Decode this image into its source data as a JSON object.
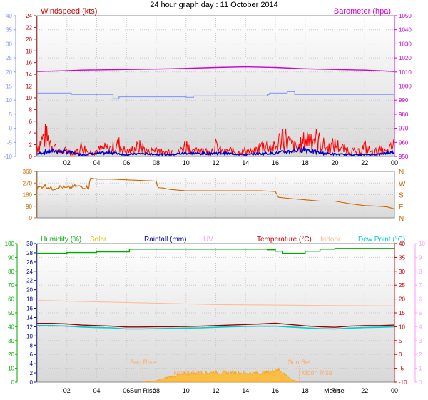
{
  "title": "24 hour graph day : 11 October 2014",
  "x_ticks": [
    "02",
    "04",
    "06",
    "08",
    "10",
    "12",
    "14",
    "16",
    "18",
    "20",
    "22",
    "00"
  ],
  "colors": {
    "windspeed": "#ff0000",
    "wind_avg": "#0000cc",
    "barometer": "#cc00cc",
    "temp_axis": "#cc0000",
    "baro_axis": "#cc00cc",
    "wind_blue_axis": "#8899ff",
    "direction": "#cc6600",
    "humidity": "#00aa00",
    "solar": "#cccc00",
    "rainfall": "#000099",
    "uv": "#ff99ff",
    "temperature": "#990000",
    "indoor": "#ffbb99",
    "dewpoint": "#00cccc",
    "solar_fill": "#ffbb33",
    "sun_moon": "#ffaa66"
  },
  "chart_data": [
    {
      "type": "line",
      "name": "wind-barometer",
      "labels": {
        "left": "Windspeed (kts)",
        "right": "Barometer (hpa)"
      },
      "y_left_outer": {
        "ticks": [
          "40",
          "35",
          "30",
          "25",
          "20",
          "15",
          "10",
          "5",
          "0",
          "-5",
          "-10"
        ],
        "ylim": [
          -10,
          40
        ]
      },
      "y_left_inner": {
        "ticks": [
          "24",
          "22",
          "20",
          "18",
          "16",
          "14",
          "12",
          "10",
          "8",
          "6",
          "4",
          "2",
          "0"
        ],
        "ylim": [
          0,
          25
        ]
      },
      "y_right": {
        "ticks": [
          "1050",
          "1040",
          "1030",
          "1020",
          "1010",
          "1000",
          "990",
          "980",
          "970",
          "960",
          "950"
        ],
        "ylim": [
          947,
          1053
        ]
      },
      "series": [
        {
          "role": "barometer",
          "unit": "hPa",
          "x": [
            0,
            2,
            3,
            6,
            9,
            12,
            14,
            16,
            18,
            20,
            22,
            24
          ],
          "values": [
            1011.0,
            1011.5,
            1012.0,
            1012.5,
            1013.0,
            1014.0,
            1014.5,
            1014.0,
            1013.0,
            1012.5,
            1012.0,
            1011.0
          ]
        },
        {
          "role": "wind-blue-line",
          "unit": "outer scale",
          "x": [
            0,
            2.2,
            2.3,
            5,
            5.1,
            5.4,
            5.5,
            6,
            10,
            10.4,
            10.5,
            14,
            15.5,
            15.6,
            16.7,
            16.8,
            17.2,
            17.3,
            22,
            24
          ],
          "values": [
            12.5,
            12.5,
            12.0,
            12.0,
            10.5,
            10.5,
            11.2,
            11.2,
            11.0,
            11.0,
            11.5,
            11.5,
            12.0,
            12.5,
            12.5,
            13.0,
            13.0,
            12.0,
            12.0,
            12.0
          ]
        },
        {
          "role": "windspeed-gust",
          "unit": "kts",
          "x": [
            0,
            0.5,
            1,
            1.5,
            2,
            2.5,
            3,
            3.5,
            4,
            4.5,
            5,
            5.5,
            6,
            6.5,
            7,
            7.5,
            8,
            8.5,
            9,
            9.5,
            10,
            10.5,
            11,
            11.5,
            12,
            12.5,
            13,
            13.5,
            14,
            14.5,
            15,
            15.5,
            16,
            16.5,
            17,
            17.5,
            18,
            18.5,
            19,
            19.5,
            20,
            20.5,
            21,
            21.5,
            22,
            22.5,
            23,
            23.5,
            24
          ],
          "values": [
            2.5,
            5.0,
            3.5,
            1.0,
            1.5,
            0.8,
            2.5,
            1.0,
            1.5,
            2.0,
            2.0,
            3.0,
            1.0,
            2.0,
            2.5,
            1.0,
            2.0,
            0.8,
            1.5,
            1.0,
            3.0,
            1.0,
            2.0,
            1.0,
            2.5,
            1.0,
            1.5,
            1.0,
            1.5,
            1.0,
            2.5,
            3.0,
            2.0,
            5.5,
            3.0,
            2.0,
            4.0,
            5.0,
            3.5,
            2.0,
            3.0,
            2.0,
            1.5,
            1.0,
            2.5,
            1.0,
            1.5,
            1.0,
            3.0
          ]
        },
        {
          "role": "windspeed-average",
          "unit": "kts",
          "x": [
            0,
            1,
            2,
            3,
            4,
            5,
            6,
            7,
            8,
            9,
            10,
            11,
            12,
            13,
            14,
            15,
            16,
            17,
            18,
            19,
            20,
            21,
            22,
            23,
            24
          ],
          "values": [
            0.5,
            1.0,
            0.8,
            0.3,
            0.5,
            0.7,
            0.3,
            0.5,
            0.4,
            0.3,
            0.6,
            0.5,
            0.6,
            0.5,
            0.3,
            0.5,
            0.6,
            0.9,
            1.3,
            0.6,
            0.4,
            0.3,
            0.3,
            0.4,
            0.8
          ]
        }
      ]
    },
    {
      "type": "line",
      "name": "wind-direction",
      "y_left": {
        "ticks": [
          "360",
          "270",
          "180",
          "90",
          "0"
        ],
        "ylim": [
          0,
          360
        ]
      },
      "y_right": {
        "ticks": [
          "N",
          "W",
          "S",
          "E",
          "N"
        ]
      },
      "series": [
        {
          "role": "direction",
          "unit": "degrees",
          "x": [
            0,
            0.5,
            1,
            1.5,
            2,
            2.5,
            3,
            3.5,
            3.55,
            4,
            5,
            6,
            7,
            8,
            8.1,
            8.6,
            8.7,
            9,
            9.5,
            10,
            11,
            12,
            13,
            14,
            15,
            16,
            16.2,
            17,
            18,
            18.5,
            19,
            20,
            20.5,
            21,
            22,
            23,
            23.5,
            24
          ],
          "values": [
            230,
            250,
            225,
            240,
            230,
            245,
            240,
            235,
            310,
            300,
            300,
            295,
            290,
            285,
            235,
            230,
            225,
            220,
            215,
            210,
            210,
            210,
            210,
            210,
            210,
            205,
            160,
            150,
            140,
            135,
            130,
            130,
            120,
            110,
            95,
            90,
            85,
            70
          ]
        }
      ]
    },
    {
      "type": "line",
      "name": "temperature-humidity",
      "labels": {
        "humidity": "Humidity (%)",
        "solar": "Solar",
        "rainfall": "Rainfall (mm)",
        "uv": "UV",
        "temperature": "Temperature (°C)",
        "indoor": "Indoor",
        "dewpoint": "Dew Point (°C)"
      },
      "y_humidity": {
        "ticks": [
          "100",
          "90",
          "80",
          "70",
          "60",
          "50",
          "40",
          "30",
          "20",
          "10",
          "0"
        ],
        "ylim": [
          0,
          100
        ]
      },
      "y_rainfall": {
        "ticks": [
          "30",
          "28",
          "26",
          "24",
          "22",
          "20",
          "18",
          "16",
          "14",
          "12",
          "10",
          "8",
          "6",
          "4",
          "2",
          "0"
        ],
        "ylim": [
          0,
          30
        ]
      },
      "y_temperature": {
        "ticks": [
          "40",
          "35",
          "30",
          "25",
          "20",
          "15",
          "10",
          "5",
          "0",
          "-5",
          "-10"
        ],
        "ylim": [
          -10,
          40
        ]
      },
      "y_uv": {
        "ticks": [
          "10",
          "9",
          "8",
          "7",
          "6",
          "5",
          "4",
          "3",
          "2",
          "1",
          "0"
        ],
        "ylim": [
          0,
          10
        ]
      },
      "series": [
        {
          "role": "humidity",
          "unit": "%",
          "x": [
            0,
            2,
            4,
            5.5,
            6.2,
            9,
            12,
            14,
            15.5,
            16,
            16.5,
            17.3,
            18,
            19,
            20,
            22,
            24
          ],
          "values": [
            93,
            93.5,
            94,
            94,
            96,
            96,
            96,
            96,
            95.5,
            94.5,
            93,
            93,
            94.5,
            96,
            96.5,
            96.5,
            96
          ]
        },
        {
          "role": "temperature",
          "unit": "°C",
          "x": [
            0,
            1,
            2,
            3,
            4,
            5,
            6,
            7,
            8,
            9,
            10,
            11,
            12,
            13,
            14,
            15,
            16,
            17,
            18,
            19,
            20,
            21,
            22,
            23,
            24
          ],
          "values": [
            11.2,
            11.2,
            11.0,
            10.6,
            10.4,
            10.2,
            9.9,
            9.9,
            10.0,
            10.0,
            10.1,
            10.2,
            10.4,
            10.6,
            10.8,
            11.0,
            11.3,
            10.8,
            10.3,
            10.0,
            9.8,
            10.2,
            10.4,
            10.4,
            10.6
          ]
        },
        {
          "role": "dewpoint",
          "unit": "°C",
          "x": [
            0,
            1,
            2,
            3,
            4,
            5,
            6,
            7,
            8,
            9,
            10,
            11,
            12,
            13,
            14,
            15,
            16,
            17,
            18,
            19,
            20,
            21,
            22,
            23,
            24
          ],
          "values": [
            10.4,
            10.4,
            10.2,
            9.9,
            9.7,
            9.6,
            9.2,
            9.2,
            9.3,
            9.4,
            9.5,
            9.6,
            9.8,
            10.0,
            10.1,
            10.2,
            10.2,
            9.9,
            9.6,
            9.3,
            9.2,
            9.5,
            9.7,
            9.8,
            10.0
          ]
        },
        {
          "role": "indoor",
          "unit": "°C",
          "x": [
            0,
            4,
            8,
            12,
            16,
            20,
            24
          ],
          "values": [
            19.5,
            19.0,
            18.5,
            18.0,
            17.8,
            17.6,
            17.5
          ]
        },
        {
          "role": "solar",
          "unit": "relative",
          "x": [
            7.1,
            8.0,
            8.5,
            9.0,
            10.0,
            11.0,
            12.0,
            13.0,
            14.0,
            15.0,
            15.8,
            16.0,
            16.4,
            16.7,
            17.1,
            17.6
          ],
          "values": [
            0,
            0.3,
            0.8,
            1.2,
            1.8,
            2.0,
            2.1,
            2.1,
            2.0,
            2.0,
            2.3,
            3.0,
            2.4,
            1.6,
            0.5,
            0
          ]
        }
      ],
      "annotations": [
        {
          "text": "Sun Rise",
          "x": 7.1
        },
        {
          "text": "Sun Set",
          "x": 17.6
        },
        {
          "text": "Moon Set",
          "x": 10.1
        },
        {
          "text": "Moon Rise",
          "x": 18.8
        }
      ],
      "x_tick_text": [
        "02",
        "04",
        "06",
        "Sun Rise",
        "08",
        "10",
        "12",
        "14",
        "16",
        "18",
        "Moon",
        "Rise",
        "22",
        "00"
      ]
    }
  ]
}
